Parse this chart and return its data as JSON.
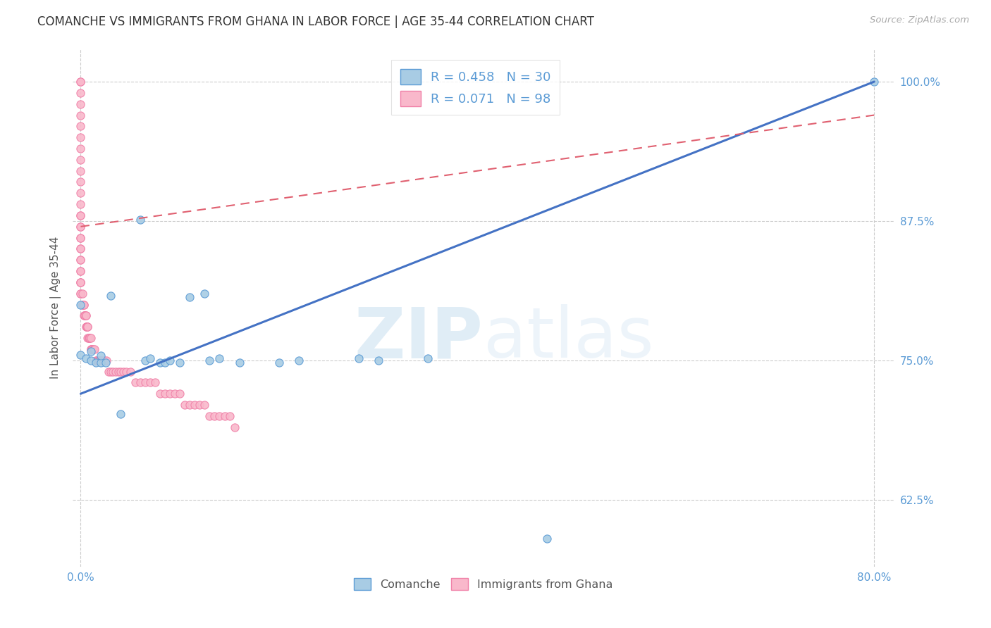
{
  "title": "COMANCHE VS IMMIGRANTS FROM GHANA IN LABOR FORCE | AGE 35-44 CORRELATION CHART",
  "source": "Source: ZipAtlas.com",
  "ylabel_label": "In Labor Force | Age 35-44",
  "ylabel_ticks": [
    0.625,
    0.75,
    0.875,
    1.0
  ],
  "ylabel_tick_labels": [
    "62.5%",
    "75.0%",
    "87.5%",
    "100.0%"
  ],
  "xlim": [
    -0.008,
    0.82
  ],
  "ylim": [
    0.565,
    1.03
  ],
  "blue_R": 0.458,
  "blue_N": 30,
  "pink_R": 0.071,
  "pink_N": 98,
  "blue_color": "#a8cce4",
  "pink_color": "#f9b8cb",
  "blue_edge_color": "#5b9bd5",
  "pink_edge_color": "#f080a8",
  "regression_blue_color": "#4472c4",
  "regression_pink_color": "#e06070",
  "watermark_zip": "ZIP",
  "watermark_atlas": "atlas",
  "legend_label_blue": "Comanche",
  "legend_label_pink": "Immigrants from Ghana",
  "blue_scatter_x": [
    0.0,
    0.0,
    0.005,
    0.01,
    0.01,
    0.015,
    0.02,
    0.02,
    0.025,
    0.03,
    0.04,
    0.06,
    0.065,
    0.07,
    0.08,
    0.085,
    0.09,
    0.1,
    0.11,
    0.125,
    0.13,
    0.14,
    0.16,
    0.2,
    0.22,
    0.28,
    0.3,
    0.35,
    0.47,
    0.8
  ],
  "blue_scatter_y": [
    0.8,
    0.755,
    0.752,
    0.75,
    0.758,
    0.748,
    0.748,
    0.754,
    0.748,
    0.808,
    0.702,
    0.876,
    0.75,
    0.752,
    0.748,
    0.748,
    0.75,
    0.748,
    0.807,
    0.81,
    0.75,
    0.752,
    0.748,
    0.748,
    0.75,
    0.752,
    0.75,
    0.752,
    0.59,
    1.0
  ],
  "pink_scatter_x": [
    0.0,
    0.0,
    0.0,
    0.0,
    0.0,
    0.0,
    0.0,
    0.0,
    0.0,
    0.0,
    0.0,
    0.0,
    0.0,
    0.0,
    0.0,
    0.0,
    0.0,
    0.0,
    0.0,
    0.0,
    0.0,
    0.0,
    0.0,
    0.0,
    0.0,
    0.0,
    0.0,
    0.0,
    0.0,
    0.0,
    0.002,
    0.002,
    0.002,
    0.003,
    0.003,
    0.003,
    0.004,
    0.004,
    0.005,
    0.005,
    0.005,
    0.006,
    0.006,
    0.006,
    0.007,
    0.007,
    0.007,
    0.008,
    0.008,
    0.009,
    0.009,
    0.01,
    0.01,
    0.01,
    0.011,
    0.011,
    0.012,
    0.013,
    0.014,
    0.015,
    0.016,
    0.017,
    0.018,
    0.019,
    0.02,
    0.022,
    0.024,
    0.026,
    0.028,
    0.03,
    0.032,
    0.035,
    0.038,
    0.04,
    0.043,
    0.046,
    0.05,
    0.055,
    0.06,
    0.065,
    0.07,
    0.075,
    0.08,
    0.085,
    0.09,
    0.095,
    0.1,
    0.105,
    0.11,
    0.115,
    0.12,
    0.125,
    0.13,
    0.135,
    0.14,
    0.145,
    0.15,
    0.155
  ],
  "pink_scatter_y": [
    1.0,
    1.0,
    0.99,
    0.98,
    0.97,
    0.96,
    0.95,
    0.94,
    0.93,
    0.92,
    0.91,
    0.9,
    0.89,
    0.88,
    0.88,
    0.87,
    0.87,
    0.86,
    0.86,
    0.85,
    0.85,
    0.84,
    0.84,
    0.83,
    0.83,
    0.82,
    0.82,
    0.82,
    0.81,
    0.81,
    0.81,
    0.8,
    0.8,
    0.8,
    0.8,
    0.79,
    0.79,
    0.79,
    0.79,
    0.79,
    0.78,
    0.78,
    0.78,
    0.78,
    0.78,
    0.78,
    0.77,
    0.77,
    0.77,
    0.77,
    0.77,
    0.77,
    0.76,
    0.76,
    0.76,
    0.76,
    0.76,
    0.76,
    0.76,
    0.75,
    0.75,
    0.75,
    0.75,
    0.75,
    0.75,
    0.75,
    0.75,
    0.75,
    0.74,
    0.74,
    0.74,
    0.74,
    0.74,
    0.74,
    0.74,
    0.74,
    0.74,
    0.73,
    0.73,
    0.73,
    0.73,
    0.73,
    0.72,
    0.72,
    0.72,
    0.72,
    0.72,
    0.71,
    0.71,
    0.71,
    0.71,
    0.71,
    0.7,
    0.7,
    0.7,
    0.7,
    0.7,
    0.69
  ]
}
